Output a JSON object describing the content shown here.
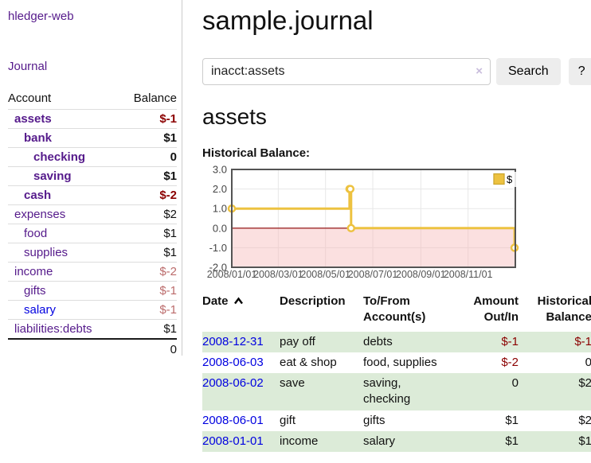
{
  "sidebar": {
    "brand": "hledger-web",
    "journal_label": "Journal",
    "accounts_header": {
      "account": "Account",
      "balance": "Balance"
    },
    "accounts": [
      {
        "name": "assets",
        "balance": "$-1",
        "indent": 1,
        "emph": true,
        "tone": "neg",
        "link_color": "purple"
      },
      {
        "name": "bank",
        "balance": "$1",
        "indent": 2,
        "emph": true,
        "tone": "",
        "link_color": "purple"
      },
      {
        "name": "checking",
        "balance": "0",
        "indent": 3,
        "emph": true,
        "tone": "",
        "link_color": "purple"
      },
      {
        "name": "saving",
        "balance": "$1",
        "indent": 3,
        "emph": true,
        "tone": "",
        "link_color": "purple"
      },
      {
        "name": "cash",
        "balance": "$-2",
        "indent": 2,
        "emph": true,
        "tone": "neg",
        "link_color": "purple"
      },
      {
        "name": "expenses",
        "balance": "$2",
        "indent": 1,
        "emph": false,
        "tone": "",
        "link_color": "purple"
      },
      {
        "name": "food",
        "balance": "$1",
        "indent": 2,
        "emph": false,
        "tone": "",
        "link_color": "purple"
      },
      {
        "name": "supplies",
        "balance": "$1",
        "indent": 2,
        "emph": false,
        "tone": "",
        "link_color": "purple"
      },
      {
        "name": "income",
        "balance": "$-2",
        "indent": 1,
        "emph": false,
        "tone": "muted",
        "link_color": "purple"
      },
      {
        "name": "gifts",
        "balance": "$-1",
        "indent": 2,
        "emph": false,
        "tone": "muted",
        "link_color": "purple"
      },
      {
        "name": "salary",
        "balance": "$-1",
        "indent": 2,
        "emph": false,
        "tone": "muted",
        "link_color": "blue"
      },
      {
        "name": "liabilities:debts",
        "balance": "$1",
        "indent": 1,
        "emph": false,
        "tone": "",
        "link_color": "purple"
      }
    ],
    "total": "0"
  },
  "main": {
    "title": "sample.journal",
    "account_title": "assets",
    "section_label": "Historical Balance:"
  },
  "search": {
    "value": "inacct:assets",
    "clear_icon": "×",
    "button_label": "Search",
    "help_label": "?"
  },
  "chart_data": {
    "type": "line",
    "title": "Historical Balance:",
    "step": true,
    "x_range": [
      "2008-01-01",
      "2009-01-01"
    ],
    "ylim": [
      -2,
      3
    ],
    "y_ticks": [
      "3.0",
      "2.0",
      "1.0",
      "0.0",
      "-1.0",
      "-2.0"
    ],
    "x_ticks": [
      "2008/01/01",
      "2008/03/01",
      "2008/05/01",
      "2008/07/01",
      "2008/09/01",
      "2008/11/01"
    ],
    "series": [
      {
        "name": "$",
        "points": [
          [
            "2008-01-01",
            1
          ],
          [
            "2008-06-01",
            2
          ],
          [
            "2008-06-02",
            2
          ],
          [
            "2008-06-03",
            0
          ],
          [
            "2008-12-31",
            -1
          ]
        ]
      }
    ],
    "legend": {
      "label": "$",
      "position": "top-right"
    },
    "negative_region_shaded": true,
    "grid": true
  },
  "register": {
    "columns": [
      {
        "label": "Date",
        "align": "left",
        "sortable": true
      },
      {
        "label": "Description",
        "align": "left"
      },
      {
        "label": "To/From\nAccount(s)",
        "align": "left"
      },
      {
        "label": "Amount\nOut/In",
        "align": "right"
      },
      {
        "label": "Historical\nBalance",
        "align": "right"
      }
    ],
    "rows": [
      {
        "date": "2008-12-31",
        "description": "pay off",
        "accounts": "debts",
        "amount": "$-1",
        "amount_negative": true,
        "balance": "$-1",
        "balance_negative": true
      },
      {
        "date": "2008-06-03",
        "description": "eat & shop",
        "accounts": "food, supplies",
        "amount": "$-2",
        "amount_negative": true,
        "balance": "0",
        "balance_negative": false
      },
      {
        "date": "2008-06-02",
        "description": "save",
        "accounts": "saving,\nchecking",
        "amount": "0",
        "amount_negative": false,
        "balance": "$2",
        "balance_negative": false
      },
      {
        "date": "2008-06-01",
        "description": "gift",
        "accounts": "gifts",
        "amount": "$1",
        "amount_negative": false,
        "balance": "$2",
        "balance_negative": false
      },
      {
        "date": "2008-01-01",
        "description": "income",
        "accounts": "salary",
        "amount": "$1",
        "amount_negative": false,
        "balance": "$1",
        "balance_negative": false
      }
    ]
  },
  "colors": {
    "link_purple": "#551a8b",
    "link_blue": "#0000e0",
    "negative_strong": "#8b0000",
    "negative_muted": "#bb6b6b",
    "row_stripe_green": "#dcebd8",
    "series_yellow": "#edc240",
    "negative_region_pink": "#f5b4b4",
    "zero_line": "#8b0000",
    "grid": "#e7e7e7",
    "chart_border": "#545454",
    "axis_text": "#545454"
  }
}
